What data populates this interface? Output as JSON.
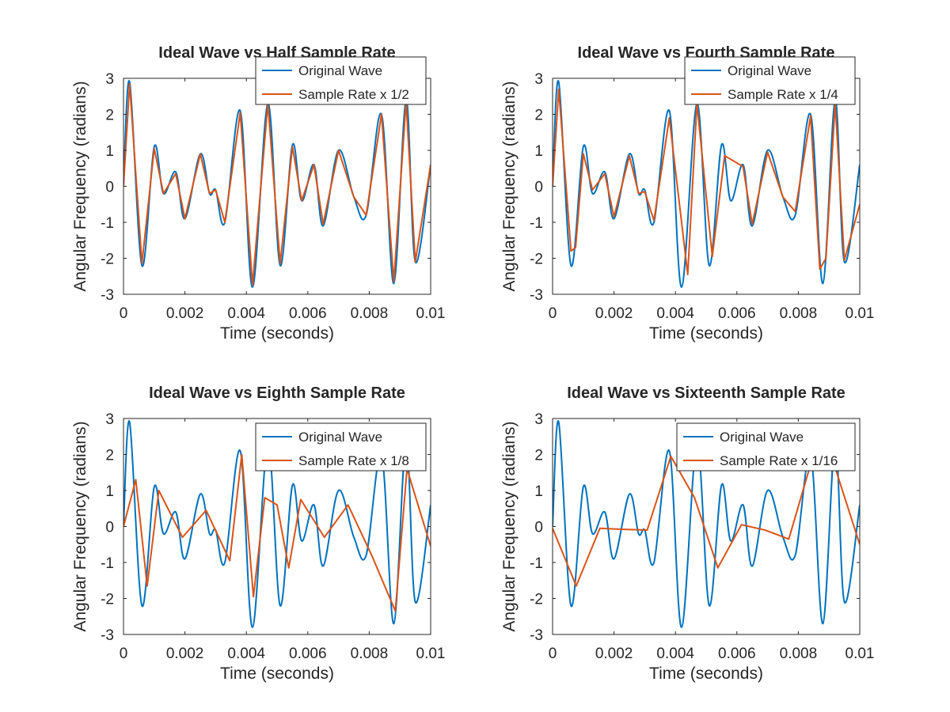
{
  "figure": {
    "colors": {
      "original": "#0072BD",
      "sampled": "#D95319",
      "axes": "#262626",
      "background": "#ffffff"
    }
  },
  "chart_data": [
    {
      "type": "line",
      "title": "Ideal Wave vs Half Sample Rate",
      "xlabel": "Time (seconds)",
      "ylabel": "Angular Frequency (radians)",
      "xlim": [
        0,
        0.01
      ],
      "ylim": [
        -3,
        3
      ],
      "xticks": [
        "0",
        "0.002",
        "0.004",
        "0.006",
        "0.008",
        "0.01"
      ],
      "yticks": [
        "3",
        "2",
        "1",
        "0",
        "-1",
        "-2",
        "-3"
      ],
      "legend": {
        "position": "top-right",
        "entries": [
          "Original Wave",
          "Sample Rate x 1/2"
        ]
      },
      "grid": false,
      "series": [
        {
          "name": "Original Wave",
          "x": [
            0,
            0.0002,
            0.0006,
            0.001,
            0.0013,
            0.0017,
            0.002,
            0.0025,
            0.0028,
            0.003,
            0.0033,
            0.0038,
            0.0042,
            0.0047,
            0.0051,
            0.0055,
            0.0058,
            0.0062,
            0.0065,
            0.007,
            0.0075,
            0.0079,
            0.0084,
            0.0088,
            0.0092,
            0.0095,
            0.01
          ],
          "y": [
            0,
            2.9,
            -2.2,
            1.1,
            -0.2,
            0.4,
            -0.9,
            0.9,
            -0.2,
            -0.1,
            -1.0,
            2.1,
            -2.8,
            2.3,
            -2.2,
            1.15,
            -0.4,
            0.6,
            -1.1,
            1.0,
            -0.3,
            -0.8,
            2.0,
            -2.7,
            2.4,
            -2.1,
            0.6
          ]
        },
        {
          "name": "Sample Rate x 1/2",
          "x": [
            0,
            0.0002,
            0.0006,
            0.001,
            0.0013,
            0.0017,
            0.002,
            0.0025,
            0.0028,
            0.003,
            0.0033,
            0.0038,
            0.0042,
            0.0047,
            0.0051,
            0.0055,
            0.0058,
            0.0062,
            0.0065,
            0.007,
            0.0075,
            0.0079,
            0.0084,
            0.0088,
            0.0092,
            0.0095,
            0.01
          ],
          "y": [
            0,
            2.85,
            -2.15,
            1.05,
            -0.2,
            0.35,
            -0.9,
            0.9,
            -0.2,
            -0.1,
            -1.0,
            2.05,
            -2.75,
            2.3,
            -2.15,
            1.1,
            -0.4,
            0.6,
            -1.05,
            1.0,
            -0.3,
            -0.8,
            2.0,
            -2.65,
            2.35,
            -2.1,
            0.6
          ]
        }
      ]
    },
    {
      "type": "line",
      "title": "Ideal Wave vs Fourth Sample Rate",
      "xlabel": "Time (seconds)",
      "ylabel": "Angular Frequency (radians)",
      "xlim": [
        0,
        0.01
      ],
      "ylim": [
        -3,
        3
      ],
      "xticks": [
        "0",
        "0.002",
        "0.004",
        "0.006",
        "0.008",
        "0.01"
      ],
      "yticks": [
        "3",
        "2",
        "1",
        "0",
        "-1",
        "-2",
        "-3"
      ],
      "legend": {
        "position": "top-right",
        "entries": [
          "Original Wave",
          "Sample Rate x 1/4"
        ]
      },
      "grid": false,
      "series": [
        {
          "name": "Original Wave",
          "x": [
            0,
            0.0002,
            0.0006,
            0.001,
            0.0013,
            0.0017,
            0.002,
            0.0025,
            0.0028,
            0.003,
            0.0033,
            0.0038,
            0.0042,
            0.0047,
            0.0051,
            0.0055,
            0.0058,
            0.0062,
            0.0065,
            0.007,
            0.0075,
            0.0079,
            0.0084,
            0.0088,
            0.0092,
            0.0095,
            0.01
          ],
          "y": [
            0,
            2.9,
            -2.2,
            1.1,
            -0.2,
            0.4,
            -0.9,
            0.9,
            -0.2,
            -0.1,
            -1.0,
            2.1,
            -2.8,
            2.3,
            -2.2,
            1.15,
            -0.4,
            0.6,
            -1.1,
            1.0,
            -0.3,
            -0.8,
            2.0,
            -2.7,
            2.4,
            -2.1,
            0.6
          ]
        },
        {
          "name": "Sample Rate x 1/4",
          "x": [
            0,
            0.0002,
            0.0006,
            0.00075,
            0.001,
            0.0013,
            0.0017,
            0.002,
            0.0025,
            0.0028,
            0.003,
            0.0033,
            0.0038,
            0.0044,
            0.0047,
            0.0052,
            0.0056,
            0.0062,
            0.0065,
            0.007,
            0.0075,
            0.0079,
            0.0084,
            0.0087,
            0.0089,
            0.0092,
            0.0095,
            0.01
          ],
          "y": [
            0,
            2.7,
            -1.8,
            -1.7,
            0.9,
            -0.1,
            0.35,
            -0.85,
            0.85,
            -0.2,
            -0.15,
            -0.95,
            1.9,
            -2.45,
            2.3,
            -1.95,
            0.85,
            0.55,
            -1.05,
            0.95,
            -0.3,
            -0.7,
            1.95,
            -2.3,
            -2.0,
            2.3,
            -2.05,
            -0.5
          ]
        }
      ]
    },
    {
      "type": "line",
      "title": "Ideal Wave vs Eighth Sample Rate",
      "xlabel": "Time (seconds)",
      "ylabel": "Angular Frequency (radians)",
      "xlim": [
        0,
        0.01
      ],
      "ylim": [
        -3,
        3
      ],
      "xticks": [
        "0",
        "0.002",
        "0.004",
        "0.006",
        "0.008",
        "0.01"
      ],
      "yticks": [
        "3",
        "2",
        "1",
        "0",
        "-1",
        "-2",
        "-3"
      ],
      "legend": {
        "position": "top-right",
        "entries": [
          "Original Wave",
          "Sample Rate x 1/8"
        ]
      },
      "grid": false,
      "series": [
        {
          "name": "Original Wave",
          "x": [
            0,
            0.0002,
            0.0006,
            0.001,
            0.0013,
            0.0017,
            0.002,
            0.0025,
            0.0028,
            0.003,
            0.0033,
            0.0038,
            0.0042,
            0.0047,
            0.0051,
            0.0055,
            0.0058,
            0.0062,
            0.0065,
            0.007,
            0.0075,
            0.0079,
            0.0084,
            0.0088,
            0.0092,
            0.0095,
            0.01
          ],
          "y": [
            0,
            2.9,
            -2.2,
            1.1,
            -0.2,
            0.4,
            -0.9,
            0.9,
            -0.2,
            -0.1,
            -1.0,
            2.1,
            -2.8,
            2.3,
            -2.2,
            1.15,
            -0.4,
            0.6,
            -1.1,
            1.0,
            -0.3,
            -0.8,
            2.0,
            -2.7,
            2.4,
            -2.1,
            0.6
          ]
        },
        {
          "name": "Sample Rate x 1/8",
          "x": [
            0,
            0.0004,
            0.00077,
            0.00115,
            0.00192,
            0.00269,
            0.00346,
            0.00385,
            0.00423,
            0.0046,
            0.005,
            0.00538,
            0.00577,
            0.00654,
            0.00731,
            0.00808,
            0.00885,
            0.00923,
            0.01
          ],
          "y": [
            0,
            1.3,
            -1.65,
            1.0,
            -0.3,
            0.45,
            -0.95,
            2.0,
            -1.95,
            0.8,
            0.6,
            -1.15,
            0.75,
            -0.3,
            0.6,
            -0.8,
            -2.35,
            1.6,
            -0.55
          ]
        }
      ]
    },
    {
      "type": "line",
      "title": "Ideal Wave vs Sixteenth Sample Rate",
      "xlabel": "Time (seconds)",
      "ylabel": "Angular Frequency (radians)",
      "xlim": [
        0,
        0.01
      ],
      "ylim": [
        -3,
        3
      ],
      "xticks": [
        "0",
        "0.002",
        "0.004",
        "0.006",
        "0.008",
        "0.01"
      ],
      "yticks": [
        "3",
        "2",
        "1",
        "0",
        "-1",
        "-2",
        "-3"
      ],
      "legend": {
        "position": "top-right",
        "entries": [
          "Original Wave",
          "Sample Rate x 1/16"
        ]
      },
      "grid": false,
      "series": [
        {
          "name": "Original Wave",
          "x": [
            0,
            0.0002,
            0.0006,
            0.001,
            0.0013,
            0.0017,
            0.002,
            0.0025,
            0.0028,
            0.003,
            0.0033,
            0.0038,
            0.0042,
            0.0047,
            0.0051,
            0.0055,
            0.0058,
            0.0062,
            0.0065,
            0.007,
            0.0075,
            0.0079,
            0.0084,
            0.0088,
            0.0092,
            0.0095,
            0.01
          ],
          "y": [
            0,
            2.9,
            -2.2,
            1.1,
            -0.2,
            0.4,
            -0.9,
            0.9,
            -0.2,
            -0.1,
            -1.0,
            2.1,
            -2.8,
            2.3,
            -2.2,
            1.15,
            -0.4,
            0.6,
            -1.1,
            1.0,
            -0.3,
            -0.8,
            2.0,
            -2.7,
            2.4,
            -2.1,
            0.6
          ]
        },
        {
          "name": "Sample Rate x 1/16",
          "x": [
            0,
            0.00077,
            0.00154,
            0.00231,
            0.00308,
            0.00385,
            0.00462,
            0.00538,
            0.00615,
            0.00692,
            0.00769,
            0.00846,
            0.00923,
            0.01
          ],
          "y": [
            -0.05,
            -1.65,
            -0.05,
            -0.08,
            -0.1,
            1.95,
            0.8,
            -1.15,
            0.05,
            -0.1,
            -0.35,
            1.9,
            1.55,
            -0.5
          ]
        }
      ]
    }
  ]
}
